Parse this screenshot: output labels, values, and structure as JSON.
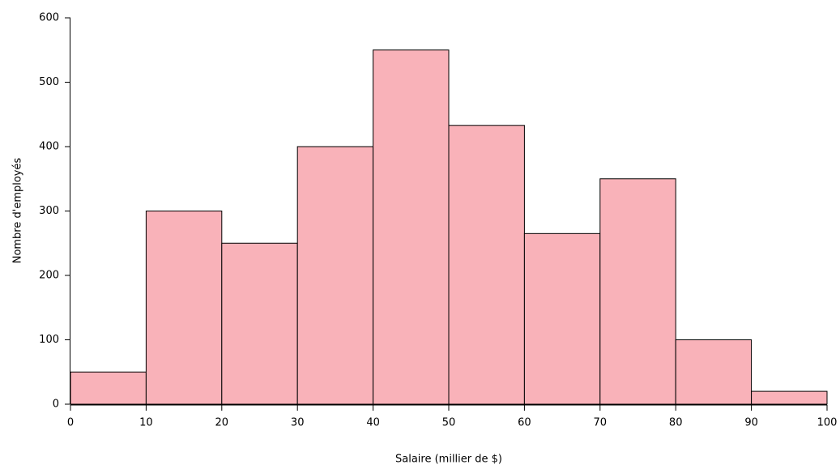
{
  "chart_data": {
    "type": "histogram",
    "xlabel": "Salaire (millier de $)",
    "ylabel": "Nombre d'employés",
    "bins": [
      0,
      10,
      20,
      30,
      40,
      50,
      60,
      70,
      80,
      90,
      100
    ],
    "values": [
      50,
      300,
      250,
      400,
      550,
      433,
      265,
      350,
      100,
      20
    ],
    "color": "#f9b2b9",
    "edgecolor": "#000000",
    "xlim": [
      0,
      100
    ],
    "xticks": [
      0,
      10,
      20,
      30,
      40,
      50,
      60,
      70,
      80,
      90,
      100
    ],
    "ylim": [
      0,
      600
    ],
    "yticks": [
      0,
      100,
      200,
      300,
      400,
      500,
      600
    ]
  }
}
